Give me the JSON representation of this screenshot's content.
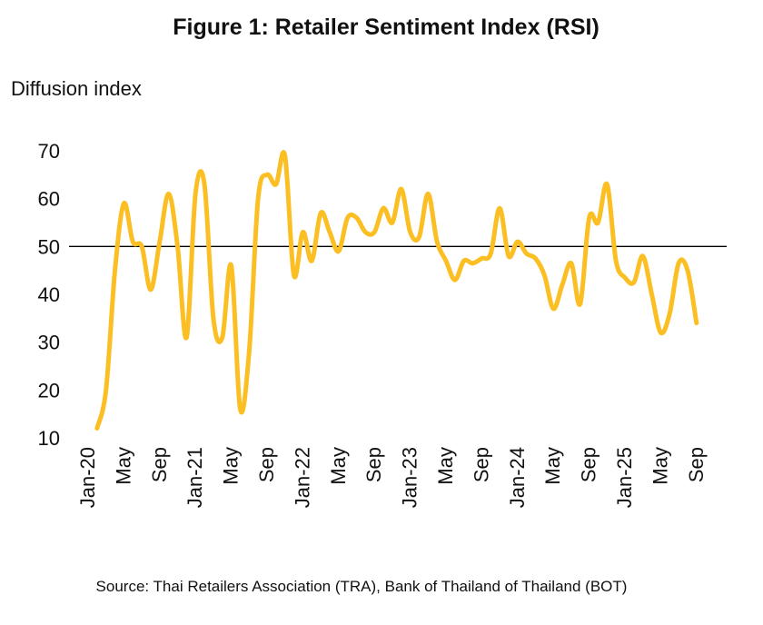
{
  "chart_data": {
    "type": "line",
    "title": "Figure 1: Retailer Sentiment Index (RSI)",
    "y_label": "Diffusion index",
    "source": "Source:  Thai Retailers Association (TRA), Bank of Thailand of Thailand (BOT)",
    "categories": [
      "Jan-20",
      null,
      null,
      null,
      "May",
      null,
      null,
      null,
      "Sep",
      null,
      null,
      null,
      "Jan-21",
      null,
      null,
      null,
      "May",
      null,
      null,
      null,
      "Sep",
      null,
      null,
      null,
      "Jan-22",
      null,
      null,
      null,
      "May",
      null,
      null,
      null,
      "Sep",
      null,
      null,
      null,
      "Jan-23",
      null,
      null,
      null,
      "May",
      null,
      null,
      null,
      "Sep",
      null,
      null,
      null,
      "Jan-24",
      null,
      null,
      null,
      "May",
      null,
      null,
      null,
      "Sep",
      null,
      null,
      null,
      "Jan-25",
      null,
      null,
      null,
      "May",
      null,
      null,
      null,
      "Sep"
    ],
    "series": [
      {
        "name": "RSI",
        "color": "#fbbf24",
        "values": [
          null,
          12,
          20,
          45,
          59,
          51,
          50,
          41,
          51,
          61,
          50,
          31,
          61,
          63,
          35,
          31,
          46,
          16,
          28,
          60,
          65,
          63,
          69,
          44,
          53,
          47,
          57,
          53,
          49,
          56,
          56,
          53,
          53,
          58,
          55,
          62,
          53,
          52,
          61,
          51,
          47,
          43,
          47,
          46.5,
          47.5,
          48.5,
          58,
          48,
          51,
          48.5,
          47.5,
          44,
          37,
          42,
          46.5,
          38,
          56,
          55,
          63,
          47,
          43.5,
          42.5,
          48,
          40,
          32,
          36,
          46.5,
          45,
          34
        ]
      }
    ],
    "reference_line": 50,
    "ylim": [
      10,
      70
    ],
    "yticks": [
      10,
      20,
      30,
      40,
      50,
      60,
      70
    ],
    "grid": false
  }
}
